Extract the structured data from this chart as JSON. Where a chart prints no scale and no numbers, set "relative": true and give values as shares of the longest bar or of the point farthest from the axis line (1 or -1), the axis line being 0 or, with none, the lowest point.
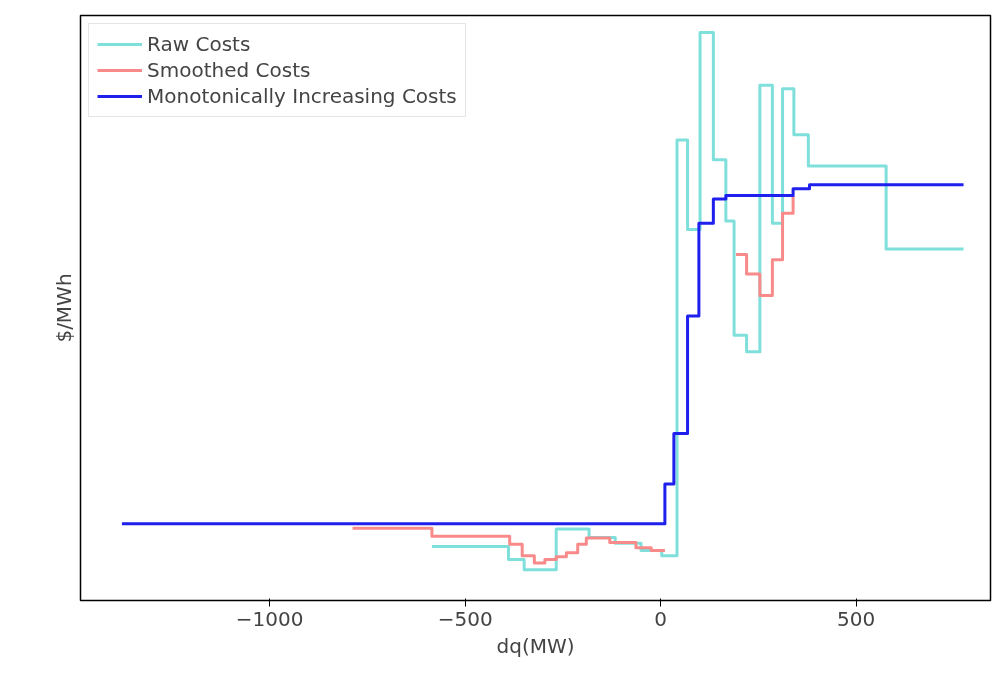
{
  "chart_data": {
    "type": "step",
    "relative": true,
    "xlabel": "dq(MW)",
    "ylabel": "$/MWh",
    "xlim": [
      -1484,
      844
    ],
    "xticks": [
      {
        "value": -1000,
        "label": "−1000"
      },
      {
        "value": -500,
        "label": "−500"
      },
      0,
      500
    ],
    "grid": false,
    "legend": "top left",
    "marker": "none",
    "line_style": "solid",
    "series": [
      {
        "name": "Raw Costs",
        "color": "#7fdfdb",
        "x": [
          -585,
          -389,
          -349,
          -267,
          -183,
          -116,
          -50,
          3,
          42,
          69,
          101,
          135,
          167,
          188,
          220,
          254,
          286,
          312,
          341,
          378,
          577,
          775
        ],
        "values": [
          0.095,
          0.072,
          0.054,
          0.126,
          0.111,
          0.101,
          0.088,
          0.079,
          0.811,
          0.653,
          1.0,
          0.776,
          0.668,
          0.467,
          0.438,
          0.907,
          0.664,
          0.901,
          0.82,
          0.765,
          0.619,
          0.619
        ]
      },
      {
        "name": "Smoothed Costs",
        "color": "#f88a8a",
        "x": [
          -788,
          -585,
          -386,
          -354,
          -323,
          -296,
          -267,
          -241,
          -212,
          -190,
          -130,
          -63,
          -24,
          11,
          193,
          220,
          254,
          286,
          312,
          339
        ],
        "values": [
          0.127,
          0.113,
          0.099,
          0.079,
          0.066,
          0.072,
          0.077,
          0.084,
          0.099,
          0.11,
          0.102,
          0.093,
          0.088,
          null,
          0.609,
          0.575,
          0.537,
          0.6,
          0.682,
          0.713
        ]
      },
      {
        "name": "Monotonically Increasing Costs",
        "color": "#1f1fee",
        "x": [
          -1378,
          11,
          34,
          69,
          98,
          135,
          167,
          339,
          381,
          775
        ],
        "values": [
          0.135,
          0.205,
          0.294,
          0.501,
          0.664,
          0.707,
          0.713,
          0.725,
          0.732,
          0.732
        ]
      }
    ]
  }
}
